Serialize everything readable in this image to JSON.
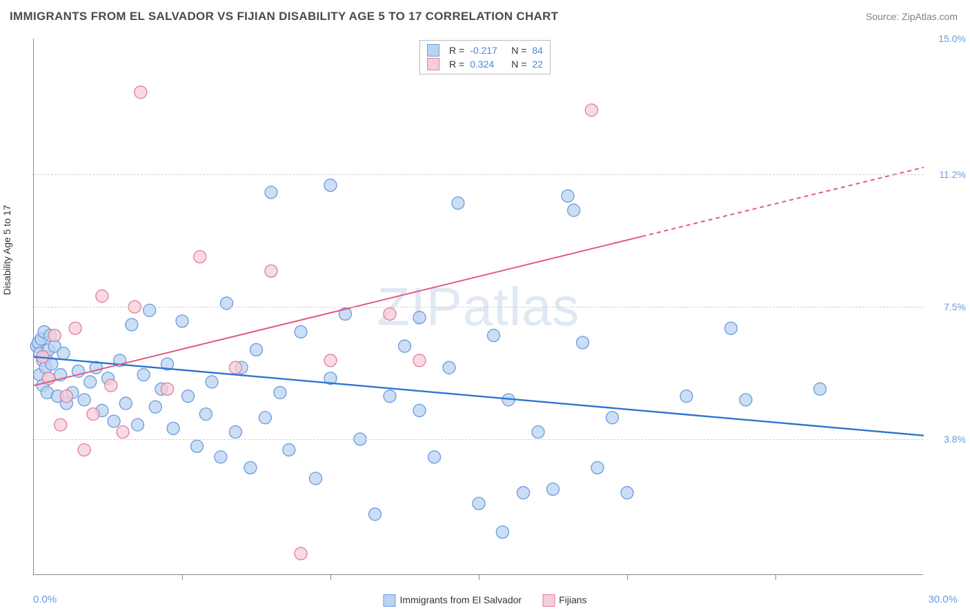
{
  "header": {
    "title": "IMMIGRANTS FROM EL SALVADOR VS FIJIAN DISABILITY AGE 5 TO 17 CORRELATION CHART",
    "source_prefix": "Source: ",
    "source_name": "ZipAtlas.com"
  },
  "chart": {
    "type": "scatter-with-regression",
    "ylabel": "Disability Age 5 to 17",
    "watermark": "ZIPatlas",
    "xlim": [
      0,
      30
    ],
    "ylim": [
      0,
      15
    ],
    "x_ticks": [
      5,
      10,
      15,
      20,
      25
    ],
    "y_gridlines": [
      3.8,
      7.5,
      11.2
    ],
    "y_tick_labels": [
      "3.8%",
      "7.5%",
      "11.2%",
      "15.0%"
    ],
    "y_tick_values": [
      3.8,
      7.5,
      11.2,
      15.0
    ],
    "x_min_label": "0.0%",
    "x_max_label": "30.0%",
    "background_color": "#ffffff",
    "grid_color": "#d0d0d0",
    "axis_color": "#888888",
    "marker_radius": 9,
    "marker_stroke_width": 1.3,
    "series": [
      {
        "id": "el_salvador",
        "label": "Immigrants from El Salvador",
        "fill": "#b9d3f0",
        "stroke": "#6a9ade",
        "R": "-0.217",
        "N": "84",
        "regression": {
          "x1": 0,
          "y1": 6.1,
          "x2": 30,
          "y2": 3.9,
          "solid_to_x": 30,
          "color": "#2f74d0",
          "width": 2.4
        },
        "points": [
          [
            0.1,
            6.4
          ],
          [
            0.15,
            6.5
          ],
          [
            0.2,
            5.6
          ],
          [
            0.2,
            6.2
          ],
          [
            0.25,
            6.6
          ],
          [
            0.3,
            6.0
          ],
          [
            0.3,
            5.3
          ],
          [
            0.35,
            6.8
          ],
          [
            0.4,
            6.1
          ],
          [
            0.4,
            5.8
          ],
          [
            0.45,
            5.1
          ],
          [
            0.5,
            6.3
          ],
          [
            0.5,
            5.5
          ],
          [
            0.55,
            6.7
          ],
          [
            0.6,
            5.9
          ],
          [
            0.7,
            6.4
          ],
          [
            0.8,
            5.0
          ],
          [
            0.9,
            5.6
          ],
          [
            1.0,
            6.2
          ],
          [
            1.1,
            4.8
          ],
          [
            1.3,
            5.1
          ],
          [
            1.5,
            5.7
          ],
          [
            1.7,
            4.9
          ],
          [
            1.9,
            5.4
          ],
          [
            2.1,
            5.8
          ],
          [
            2.3,
            4.6
          ],
          [
            2.5,
            5.5
          ],
          [
            2.7,
            4.3
          ],
          [
            2.9,
            6.0
          ],
          [
            3.1,
            4.8
          ],
          [
            3.3,
            7.0
          ],
          [
            3.5,
            4.2
          ],
          [
            3.7,
            5.6
          ],
          [
            3.9,
            7.4
          ],
          [
            4.1,
            4.7
          ],
          [
            4.3,
            5.2
          ],
          [
            4.5,
            5.9
          ],
          [
            4.7,
            4.1
          ],
          [
            5.0,
            7.1
          ],
          [
            5.2,
            5.0
          ],
          [
            5.5,
            3.6
          ],
          [
            5.8,
            4.5
          ],
          [
            6.0,
            5.4
          ],
          [
            6.3,
            3.3
          ],
          [
            6.5,
            7.6
          ],
          [
            6.8,
            4.0
          ],
          [
            7.0,
            5.8
          ],
          [
            7.3,
            3.0
          ],
          [
            7.5,
            6.3
          ],
          [
            7.8,
            4.4
          ],
          [
            8.0,
            10.7
          ],
          [
            8.3,
            5.1
          ],
          [
            8.6,
            3.5
          ],
          [
            9.0,
            6.8
          ],
          [
            9.5,
            2.7
          ],
          [
            10.0,
            10.9
          ],
          [
            10.0,
            5.5
          ],
          [
            10.5,
            7.3
          ],
          [
            11.0,
            3.8
          ],
          [
            11.5,
            1.7
          ],
          [
            12.0,
            5.0
          ],
          [
            12.5,
            6.4
          ],
          [
            13.0,
            4.6
          ],
          [
            13.0,
            7.2
          ],
          [
            13.5,
            3.3
          ],
          [
            14.0,
            5.8
          ],
          [
            14.3,
            10.4
          ],
          [
            15.0,
            2.0
          ],
          [
            15.5,
            6.7
          ],
          [
            16.0,
            4.9
          ],
          [
            15.8,
            1.2
          ],
          [
            16.5,
            2.3
          ],
          [
            17.0,
            4.0
          ],
          [
            17.5,
            2.4
          ],
          [
            18.0,
            10.6
          ],
          [
            18.2,
            10.2
          ],
          [
            18.5,
            6.5
          ],
          [
            19.0,
            3.0
          ],
          [
            19.5,
            4.4
          ],
          [
            20.0,
            2.3
          ],
          [
            22.0,
            5.0
          ],
          [
            23.5,
            6.9
          ],
          [
            24.0,
            4.9
          ],
          [
            26.5,
            5.2
          ]
        ]
      },
      {
        "id": "fijians",
        "label": "Fijians",
        "fill": "#f6cdd8",
        "stroke": "#e47a99",
        "R": "0.324",
        "N": "22",
        "regression": {
          "x1": 0,
          "y1": 5.3,
          "x2": 30,
          "y2": 11.4,
          "solid_to_x": 20.5,
          "color": "#e05a7e",
          "width": 2.0
        },
        "points": [
          [
            0.3,
            6.1
          ],
          [
            0.5,
            5.5
          ],
          [
            0.7,
            6.7
          ],
          [
            0.9,
            4.2
          ],
          [
            1.1,
            5.0
          ],
          [
            1.4,
            6.9
          ],
          [
            1.7,
            3.5
          ],
          [
            2.0,
            4.5
          ],
          [
            2.3,
            7.8
          ],
          [
            2.6,
            5.3
          ],
          [
            3.0,
            4.0
          ],
          [
            3.4,
            7.5
          ],
          [
            3.6,
            13.5
          ],
          [
            4.5,
            5.2
          ],
          [
            5.6,
            8.9
          ],
          [
            6.8,
            5.8
          ],
          [
            8.0,
            8.5
          ],
          [
            9.0,
            0.6
          ],
          [
            10.0,
            6.0
          ],
          [
            12.0,
            7.3
          ],
          [
            13.0,
            6.0
          ],
          [
            18.8,
            13.0
          ]
        ]
      }
    ]
  },
  "top_legend": {
    "rows": [
      {
        "swatch": "el_salvador",
        "r_label": "R =",
        "r_val": "-0.217",
        "n_label": "N =",
        "n_val": "84"
      },
      {
        "swatch": "fijians",
        "r_label": "R =",
        "r_val": "0.324",
        "n_label": "N =",
        "n_val": "22"
      }
    ]
  },
  "bottom_legend": {
    "items": [
      {
        "swatch": "el_salvador",
        "label": "Immigrants from El Salvador"
      },
      {
        "swatch": "fijians",
        "label": "Fijians"
      }
    ]
  }
}
